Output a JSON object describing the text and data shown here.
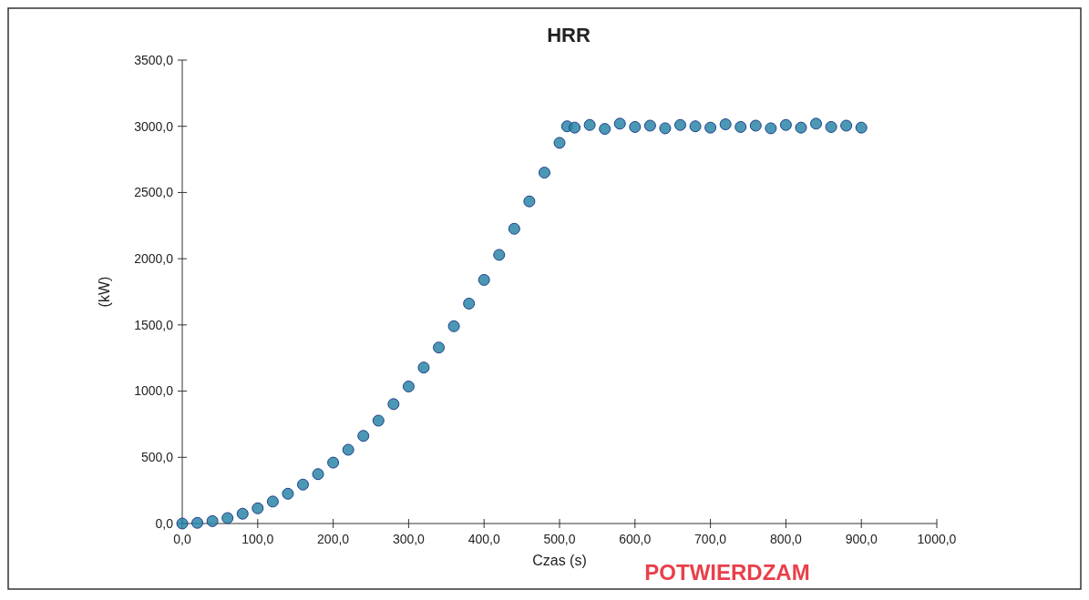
{
  "chart_data": {
    "type": "scatter",
    "title": "HRR",
    "xlabel": "Czas (s)",
    "ylabel": "(kW)",
    "x": [
      0,
      20,
      40,
      60,
      80,
      100,
      120,
      140,
      160,
      180,
      200,
      220,
      240,
      260,
      280,
      300,
      320,
      340,
      360,
      380,
      400,
      420,
      440,
      460,
      480,
      500,
      510,
      520,
      540,
      560,
      580,
      600,
      620,
      640,
      660,
      680,
      700,
      720,
      740,
      760,
      780,
      800,
      820,
      840,
      860,
      880,
      900
    ],
    "series": [
      {
        "color": "#2b86a8",
        "values": [
          0,
          5,
          18,
          41,
          74,
          115,
          166,
          225,
          294,
          373,
          460,
          557,
          662,
          777,
          902,
          1035,
          1178,
          1329,
          1490,
          1661,
          1840,
          2029,
          2226,
          2433,
          2650,
          2875,
          3000,
          2990,
          3010,
          2980,
          3020,
          2995,
          3005,
          2985,
          3010,
          3000,
          2990,
          3015,
          2995,
          3005,
          2985,
          3010,
          2990,
          3020,
          2995,
          3005,
          2990
        ]
      }
    ],
    "marker": "circle",
    "xlim": [
      0,
      1000
    ],
    "xticks": [
      {
        "value": 0,
        "label": "0,0"
      },
      {
        "value": 100,
        "label": "100,0"
      },
      {
        "value": 200,
        "label": "200,0"
      },
      {
        "value": 300,
        "label": "300,0"
      },
      {
        "value": 400,
        "label": "400,0"
      },
      {
        "value": 500,
        "label": "500,0"
      },
      {
        "value": 600,
        "label": "600,0"
      },
      {
        "value": 700,
        "label": "700,0"
      },
      {
        "value": 800,
        "label": "800,0"
      },
      {
        "value": 900,
        "label": "900,0"
      },
      {
        "value": 1000,
        "label": "1000,0"
      }
    ],
    "ylim": [
      0,
      3500
    ],
    "yticks": [
      {
        "value": 0,
        "label": "0,0"
      },
      {
        "value": 500,
        "label": "500,0"
      },
      {
        "value": 1000,
        "label": "1000,0"
      },
      {
        "value": 1500,
        "label": "1500,0"
      },
      {
        "value": 2000,
        "label": "2000,0"
      },
      {
        "value": 2500,
        "label": "2500,0"
      },
      {
        "value": 3000,
        "label": "3000,0"
      },
      {
        "value": 3500,
        "label": "3500,0"
      }
    ],
    "grid": false,
    "annotations": [
      "POTWIERDZAM"
    ]
  }
}
